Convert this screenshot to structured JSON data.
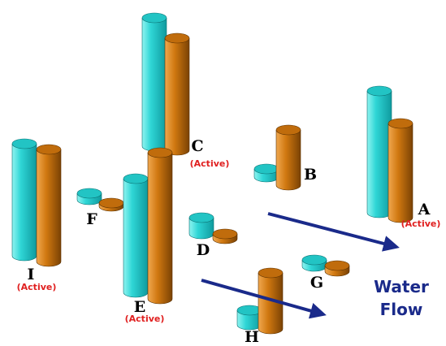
{
  "nodes": [
    {
      "label": "A",
      "status": "(Active)"
    },
    {
      "label": "B"
    },
    {
      "label": "C",
      "status": "(Active)"
    },
    {
      "label": "D"
    },
    {
      "label": "E",
      "status": "(Active)"
    },
    {
      "label": "F"
    },
    {
      "label": "G"
    },
    {
      "label": "H"
    },
    {
      "label": "I",
      "status": "(Active)"
    }
  ],
  "flow_label": [
    "Water",
    "Flow"
  ]
}
